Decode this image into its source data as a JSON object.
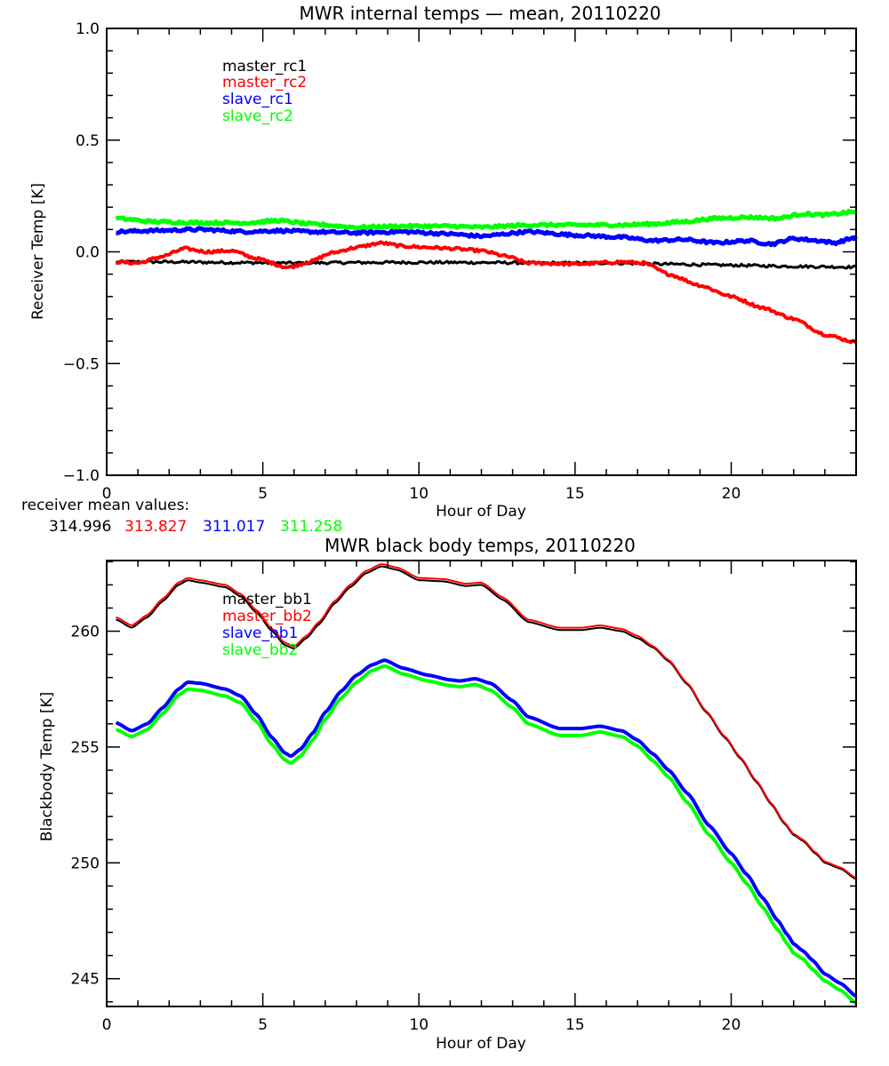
{
  "chart_data": [
    {
      "type": "line",
      "title": "MWR internal temps — mean, 20110220",
      "xlabel": "Hour of Day",
      "ylabel": "Receiver Temp [K]",
      "xlim": [
        0,
        24
      ],
      "ylim": [
        -1.0,
        1.0
      ],
      "xticks": [
        0,
        5,
        10,
        15,
        20
      ],
      "xtick_labels": [
        "0",
        "5",
        "10",
        "15",
        "20"
      ],
      "yticks": [
        -1.0,
        -0.5,
        0.0,
        0.5,
        1.0
      ],
      "ytick_labels": [
        "−1.0",
        "−0.5",
        "0.0",
        "0.5",
        "1.0"
      ],
      "x_minor_step": 1,
      "y_minor_step": 0.1,
      "grid": false,
      "legend_position": "top-left",
      "series": [
        {
          "name": "master_rc1",
          "color": "#000000",
          "noisy": true,
          "x": [
            0.3,
            2,
            4,
            6,
            8,
            10,
            12,
            14,
            16,
            18,
            20,
            22,
            24
          ],
          "y": [
            -0.045,
            -0.045,
            -0.048,
            -0.05,
            -0.048,
            -0.047,
            -0.048,
            -0.05,
            -0.05,
            -0.055,
            -0.06,
            -0.065,
            -0.068
          ]
        },
        {
          "name": "master_rc2",
          "color": "#ff0000",
          "noisy": true,
          "x": [
            0.3,
            1.0,
            1.8,
            2.5,
            3.2,
            4.0,
            4.8,
            5.8,
            6.5,
            7.2,
            8.0,
            8.8,
            9.5,
            10.3,
            11.0,
            12.0,
            12.8,
            13.5,
            15.0,
            16.5,
            17.2,
            18.0,
            19.0,
            20.0,
            21.0,
            22.0,
            23.0,
            24.0
          ],
          "y": [
            -0.045,
            -0.05,
            -0.02,
            0.015,
            0.0,
            0.005,
            -0.03,
            -0.07,
            -0.045,
            -0.005,
            0.02,
            0.04,
            0.025,
            0.02,
            0.015,
            0.005,
            -0.02,
            -0.05,
            -0.055,
            -0.045,
            -0.05,
            -0.1,
            -0.15,
            -0.2,
            -0.25,
            -0.3,
            -0.37,
            -0.405
          ]
        },
        {
          "name": "slave_rc1",
          "color": "#0000ff",
          "noisy": true,
          "x": [
            0.3,
            1.5,
            3.0,
            4.5,
            5.5,
            6.5,
            8.0,
            9.5,
            11.0,
            12.0,
            13.5,
            15.0,
            16.5,
            17.5,
            18.5,
            19.5,
            20.5,
            21.3,
            22.0,
            22.8,
            23.3,
            24.0
          ],
          "y": [
            0.09,
            0.095,
            0.1,
            0.09,
            0.095,
            0.09,
            0.085,
            0.09,
            0.08,
            0.07,
            0.09,
            0.075,
            0.065,
            0.05,
            0.055,
            0.04,
            0.05,
            0.035,
            0.06,
            0.05,
            0.04,
            0.065
          ]
        },
        {
          "name": "slave_rc2",
          "color": "#00ff00",
          "noisy": true,
          "x": [
            0.3,
            1.5,
            3.0,
            4.5,
            5.5,
            6.5,
            8.0,
            9.5,
            11.0,
            12.0,
            13.5,
            15.0,
            16.5,
            17.5,
            18.5,
            19.5,
            20.5,
            21.5,
            22.3,
            23.0,
            24.0
          ],
          "y": [
            0.15,
            0.135,
            0.13,
            0.13,
            0.14,
            0.125,
            0.11,
            0.115,
            0.115,
            0.11,
            0.12,
            0.12,
            0.12,
            0.125,
            0.135,
            0.15,
            0.155,
            0.15,
            0.17,
            0.165,
            0.18
          ]
        }
      ],
      "annotation": {
        "label": "receiver mean values:",
        "values": [
          {
            "text": "314.996",
            "color": "#000000"
          },
          {
            "text": "313.827",
            "color": "#ff0000"
          },
          {
            "text": "311.017",
            "color": "#0000ff"
          },
          {
            "text": "311.258",
            "color": "#00ff00"
          }
        ]
      }
    },
    {
      "type": "line",
      "title": "MWR black body temps, 20110220",
      "xlabel": "Hour of Day",
      "ylabel": "Blackbody Temp [K]",
      "xlim": [
        0,
        24
      ],
      "ylim": [
        243.8,
        263.05
      ],
      "xticks": [
        0,
        5,
        10,
        15,
        20
      ],
      "xtick_labels": [
        "0",
        "5",
        "10",
        "15",
        "20"
      ],
      "yticks": [
        245,
        250,
        255,
        260
      ],
      "ytick_labels": [
        "245",
        "250",
        "255",
        "260"
      ],
      "x_minor_step": 1,
      "y_minor_step": 1,
      "grid": false,
      "legend_position": "top-left",
      "series": [
        {
          "name": "master_bb1",
          "color": "#000000",
          "x": [
            0.3,
            0.8,
            1.3,
            1.8,
            2.3,
            2.6,
            3.0,
            3.8,
            4.3,
            4.8,
            5.3,
            5.7,
            6.0,
            6.4,
            6.8,
            7.3,
            7.8,
            8.3,
            8.8,
            9.3,
            10.0,
            10.8,
            11.5,
            12.0,
            12.7,
            13.5,
            14.5,
            15.2,
            15.8,
            16.5,
            17.0,
            17.5,
            18.0,
            18.6,
            19.2,
            19.8,
            20.3,
            20.8,
            21.3,
            21.7,
            22.0,
            22.3,
            22.7,
            23.0,
            23.5,
            24.0
          ],
          "y": [
            260.5,
            260.15,
            260.6,
            261.3,
            262.0,
            262.2,
            262.1,
            261.9,
            261.5,
            260.8,
            260.0,
            259.4,
            259.25,
            259.7,
            260.3,
            261.2,
            261.9,
            262.5,
            262.8,
            262.65,
            262.2,
            262.15,
            261.95,
            262.0,
            261.35,
            260.4,
            260.05,
            260.05,
            260.15,
            260.0,
            259.7,
            259.3,
            258.7,
            257.7,
            256.5,
            255.4,
            254.5,
            253.5,
            252.5,
            251.7,
            251.2,
            250.95,
            250.4,
            250.0,
            249.75,
            249.3
          ]
        },
        {
          "name": "master_bb2",
          "color": "#ff0000",
          "x": [
            0.3,
            0.8,
            1.3,
            1.8,
            2.3,
            2.6,
            3.0,
            3.8,
            4.3,
            4.8,
            5.3,
            5.7,
            6.0,
            6.4,
            6.8,
            7.3,
            7.8,
            8.3,
            8.8,
            9.3,
            10.0,
            10.8,
            11.5,
            12.0,
            12.7,
            13.5,
            14.5,
            15.2,
            15.8,
            16.5,
            17.0,
            17.5,
            18.0,
            18.6,
            19.2,
            19.8,
            20.3,
            20.8,
            21.3,
            21.7,
            22.0,
            22.3,
            22.7,
            23.0,
            23.5,
            24.0
          ],
          "y": [
            260.6,
            260.25,
            260.7,
            261.4,
            262.1,
            262.3,
            262.2,
            262.0,
            261.6,
            260.9,
            260.1,
            259.5,
            259.35,
            259.8,
            260.4,
            261.3,
            262.0,
            262.6,
            262.9,
            262.75,
            262.3,
            262.25,
            262.05,
            262.1,
            261.45,
            260.5,
            260.15,
            260.15,
            260.25,
            260.1,
            259.8,
            259.35,
            258.75,
            257.75,
            256.55,
            255.45,
            254.55,
            253.55,
            252.55,
            251.75,
            251.25,
            251.0,
            250.45,
            250.05,
            249.8,
            249.35
          ]
        },
        {
          "name": "slave_bb1",
          "color": "#0000ff",
          "x": [
            0.3,
            0.8,
            1.3,
            1.8,
            2.3,
            2.6,
            3.0,
            3.8,
            4.3,
            4.8,
            5.3,
            5.7,
            5.9,
            6.2,
            6.6,
            7.0,
            7.5,
            8.0,
            8.5,
            8.9,
            9.5,
            10.3,
            11.0,
            11.3,
            11.8,
            12.3,
            13.0,
            13.5,
            14.5,
            15.2,
            15.8,
            16.5,
            17.0,
            17.5,
            18.0,
            18.6,
            19.3,
            20.0,
            20.5,
            21.0,
            21.5,
            21.8,
            22.0,
            22.3,
            22.6,
            23.0,
            23.5,
            24.0
          ],
          "y": [
            256.05,
            255.7,
            256.0,
            256.7,
            257.5,
            257.8,
            257.75,
            257.5,
            257.2,
            256.4,
            255.4,
            254.75,
            254.6,
            254.9,
            255.6,
            256.5,
            257.4,
            258.1,
            258.55,
            258.75,
            258.4,
            258.1,
            257.9,
            257.85,
            257.95,
            257.75,
            257.0,
            256.3,
            255.8,
            255.8,
            255.9,
            255.7,
            255.3,
            254.7,
            254.0,
            253.0,
            251.6,
            250.4,
            249.5,
            248.5,
            247.5,
            246.9,
            246.5,
            246.2,
            245.8,
            245.2,
            244.8,
            244.25
          ]
        },
        {
          "name": "slave_bb2",
          "color": "#00ff00",
          "x": [
            0.3,
            0.8,
            1.3,
            1.8,
            2.3,
            2.6,
            3.0,
            3.8,
            4.3,
            4.8,
            5.3,
            5.7,
            5.9,
            6.2,
            6.6,
            7.0,
            7.5,
            8.0,
            8.5,
            8.9,
            9.5,
            10.3,
            11.0,
            11.3,
            11.8,
            12.3,
            13.0,
            13.5,
            14.5,
            15.2,
            15.8,
            16.5,
            17.0,
            17.5,
            18.0,
            18.6,
            19.3,
            20.0,
            20.5,
            21.0,
            21.5,
            21.8,
            22.0,
            22.3,
            22.6,
            23.0,
            23.5,
            24.0
          ],
          "y": [
            255.75,
            255.45,
            255.75,
            256.45,
            257.25,
            257.5,
            257.45,
            257.2,
            256.9,
            256.1,
            255.1,
            254.45,
            254.3,
            254.6,
            255.3,
            256.2,
            257.1,
            257.8,
            258.3,
            258.5,
            258.15,
            257.85,
            257.65,
            257.6,
            257.7,
            257.45,
            256.7,
            256.0,
            255.5,
            255.5,
            255.65,
            255.45,
            255.05,
            254.4,
            253.7,
            252.6,
            251.2,
            250.0,
            249.1,
            248.1,
            247.1,
            246.5,
            246.1,
            245.85,
            245.4,
            244.9,
            244.5,
            243.95
          ]
        }
      ]
    }
  ]
}
